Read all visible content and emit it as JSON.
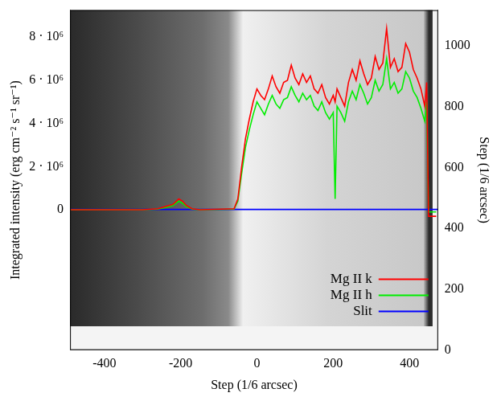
{
  "chart_data": {
    "type": "line",
    "xlabel": "Step (1/6 arcsec)",
    "ylabel": "Integrated intensity (erg cm⁻² s⁻¹ sr⁻¹)",
    "y2label": "Step (1/6 arcsec)",
    "xlim": [
      -490,
      475
    ],
    "xticks": [
      -400,
      -200,
      0,
      200,
      400
    ],
    "ylim": [
      -6500000.0,
      9250000.0
    ],
    "yticks": [
      0,
      {
        "value": 2000000.0,
        "label": "2 · 10⁶"
      },
      {
        "value": 4000000.0,
        "label": "4 · 10⁶"
      },
      {
        "value": 6000000.0,
        "label": "6 · 10⁶"
      },
      {
        "value": 8000000.0,
        "label": "8 · 10⁶"
      }
    ],
    "y2lim": [
      0,
      1117
    ],
    "y2ticks": [
      0,
      200,
      400,
      600,
      800,
      1000
    ],
    "grid": false,
    "legend": "bottom right",
    "series": [
      {
        "name": "Mg II k",
        "color": "#ff0000",
        "x": [
          -490,
          -300,
          -260,
          -240,
          -220,
          -205,
          -195,
          -185,
          -170,
          -150,
          -60,
          -50,
          -40,
          -30,
          -20,
          -10,
          0,
          10,
          20,
          30,
          40,
          50,
          60,
          70,
          80,
          90,
          100,
          110,
          120,
          130,
          140,
          150,
          160,
          170,
          180,
          190,
          200,
          205,
          210,
          220,
          230,
          240,
          250,
          260,
          270,
          280,
          290,
          300,
          310,
          320,
          330,
          340,
          350,
          360,
          370,
          380,
          390,
          400,
          410,
          420,
          430,
          440,
          445,
          450,
          470
        ],
        "values": [
          0,
          0,
          50000.0,
          150000.0,
          250000.0,
          500000.0,
          400000.0,
          200000.0,
          50000.0,
          0,
          50000.0,
          500000.0,
          2000000.0,
          3300000.0,
          4200000.0,
          5000000.0,
          5600000.0,
          5300000.0,
          5100000.0,
          5600000.0,
          6200000.0,
          5700000.0,
          5400000.0,
          5900000.0,
          6000000.0,
          6700000.0,
          6100000.0,
          5800000.0,
          6300000.0,
          5900000.0,
          6200000.0,
          5600000.0,
          5400000.0,
          5800000.0,
          5200000.0,
          4900000.0,
          5300000.0,
          5000000.0,
          5600000.0,
          5200000.0,
          4800000.0,
          5900000.0,
          6500000.0,
          6000000.0,
          6900000.0,
          6300000.0,
          5800000.0,
          6100000.0,
          7100000.0,
          6500000.0,
          6800000.0,
          8400000.0,
          6600000.0,
          7000000.0,
          6400000.0,
          6600000.0,
          7700000.0,
          7300000.0,
          6500000.0,
          6100000.0,
          5600000.0,
          4800000.0,
          5900000.0,
          -300000.0,
          -300000.0
        ]
      },
      {
        "name": "Mg II h",
        "color": "#00ee00",
        "x": [
          -490,
          -300,
          -260,
          -240,
          -220,
          -205,
          -195,
          -185,
          -170,
          -150,
          -60,
          -50,
          -40,
          -30,
          -20,
          -10,
          0,
          10,
          20,
          30,
          40,
          50,
          60,
          70,
          80,
          90,
          100,
          110,
          120,
          130,
          140,
          150,
          160,
          170,
          180,
          190,
          200,
          205,
          210,
          220,
          230,
          240,
          250,
          260,
          270,
          280,
          290,
          300,
          310,
          320,
          330,
          340,
          350,
          360,
          370,
          380,
          390,
          400,
          410,
          420,
          430,
          440,
          445,
          450,
          470
        ],
        "values": [
          0,
          0,
          30000.0,
          100000.0,
          200000.0,
          400000.0,
          300000.0,
          150000.0,
          30000.0,
          0,
          30000.0,
          400000.0,
          1700000.0,
          2900000.0,
          3700000.0,
          4400000.0,
          5000000.0,
          4700000.0,
          4400000.0,
          4900000.0,
          5300000.0,
          4900000.0,
          4700000.0,
          5100000.0,
          5200000.0,
          5700000.0,
          5300000.0,
          5000000.0,
          5400000.0,
          5100000.0,
          5300000.0,
          4800000.0,
          4600000.0,
          5000000.0,
          4500000.0,
          4200000.0,
          4500000.0,
          500000.0,
          4800000.0,
          4500000.0,
          4100000.0,
          5000000.0,
          5500000.0,
          5100000.0,
          5800000.0,
          5400000.0,
          4900000.0,
          5200000.0,
          6000000.0,
          5500000.0,
          5800000.0,
          7000000.0,
          5600000.0,
          5900000.0,
          5400000.0,
          5600000.0,
          6400000.0,
          6100000.0,
          5500000.0,
          5200000.0,
          4700000.0,
          4100000.0,
          5000000.0,
          -100000.0,
          -100000.0
        ]
      },
      {
        "name": "Slit",
        "color": "#0000ff",
        "axis": "y2",
        "x": [
          -490,
          475
        ],
        "values": [
          462,
          462
        ]
      }
    ]
  }
}
